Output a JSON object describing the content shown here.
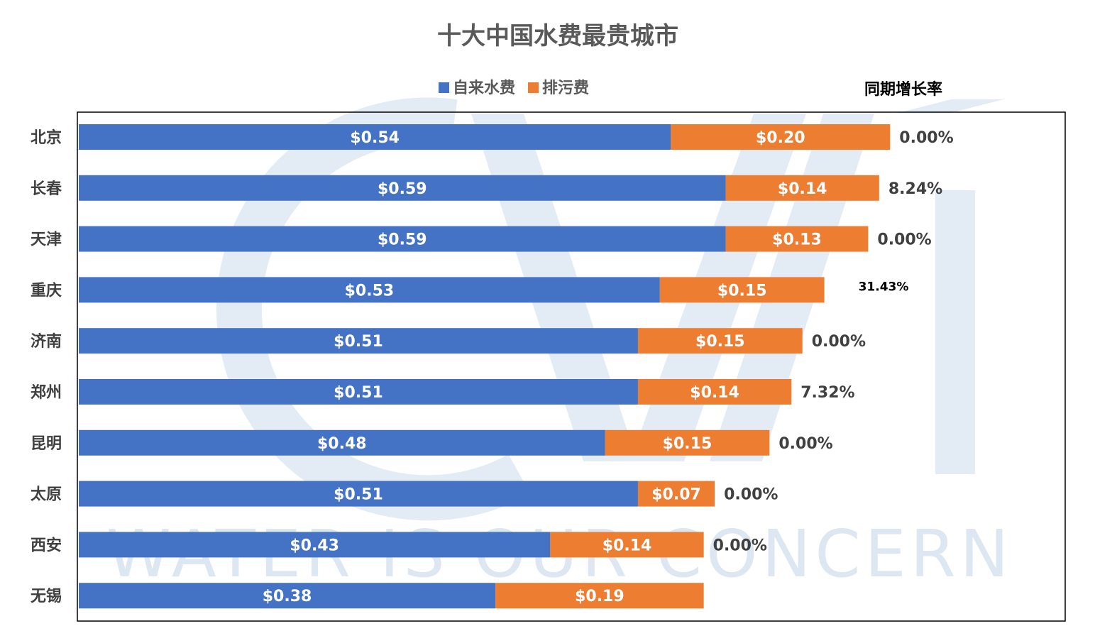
{
  "chart_data": {
    "type": "bar",
    "orientation": "horizontal",
    "stacked": true,
    "title": "十大中国水费最贵城市",
    "categories": [
      "北京",
      "长春",
      "天津",
      "重庆",
      "济南",
      "郑州",
      "昆明",
      "太原",
      "西安",
      "无锡"
    ],
    "series": [
      {
        "name": "自来水费",
        "color": "#4472c4",
        "values": [
          0.54,
          0.59,
          0.59,
          0.53,
          0.51,
          0.51,
          0.48,
          0.51,
          0.43,
          0.38
        ],
        "labels": [
          "$0.54",
          "$0.59",
          "$0.59",
          "$0.53",
          "$0.51",
          "$0.51",
          "$0.48",
          "$0.51",
          "$0.43",
          "$0.38"
        ]
      },
      {
        "name": "排污费",
        "color": "#ed7d31",
        "values": [
          0.2,
          0.14,
          0.13,
          0.15,
          0.15,
          0.14,
          0.15,
          0.07,
          0.14,
          0.19
        ],
        "labels": [
          "$0.20",
          "$0.14",
          "$0.13",
          "$0.15",
          "$0.15",
          "$0.14",
          "$0.15",
          "$0.07",
          "$0.14",
          "$0.19"
        ]
      }
    ],
    "growth_header": "同期增长率",
    "growth_labels": [
      "0.00%",
      "8.24%",
      "0.00%",
      "31.43%",
      "0.00%",
      "7.32%",
      "0.00%",
      "0.00%",
      "0.00%",
      ""
    ],
    "xlim": [
      0,
      0.9
    ],
    "legend_position": "top",
    "grid": false
  },
  "watermark": {
    "text": "WATER IS OUR CONCERN"
  },
  "colors": {
    "title": "#595959",
    "watermark": "#dde7f1"
  }
}
